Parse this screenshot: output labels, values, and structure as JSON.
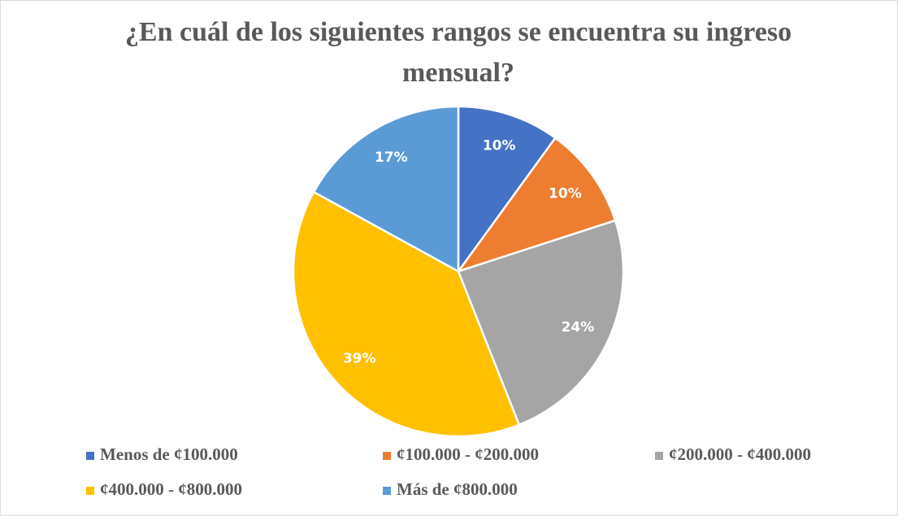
{
  "chart_data": {
    "type": "pie",
    "title": "¿En cuál de los siguientes rangos se encuentra su ingreso mensual?",
    "categories": [
      "Menos de ¢100.000",
      "¢100.000 - ¢200.000",
      "¢200.000 - ¢400.000",
      "¢400.000 - ¢800.000",
      "Más de ¢800.000"
    ],
    "values": [
      10,
      10,
      24,
      39,
      17
    ],
    "value_labels": [
      "10%",
      "10%",
      "24%",
      "39%",
      "17%"
    ],
    "colors": [
      "#4472c4",
      "#ed7d31",
      "#a5a5a5",
      "#ffc000",
      "#5b9bd5"
    ],
    "legend": "bottom"
  }
}
